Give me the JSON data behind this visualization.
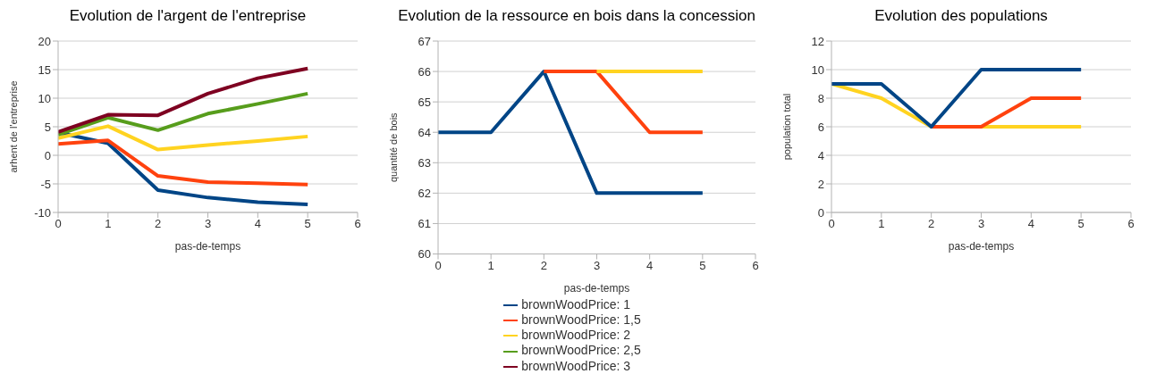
{
  "chart_data": [
    {
      "type": "line",
      "title": "Evolution de l'argent de l'entreprise",
      "xlabel": "pas-de-temps",
      "ylabel": "arhent de l'entreprise",
      "x": [
        0,
        1,
        2,
        3,
        4,
        5
      ],
      "xlim": [
        0,
        6
      ],
      "xticks": [
        0,
        1,
        2,
        3,
        4,
        5,
        6
      ],
      "ylim": [
        -10,
        20
      ],
      "yticks": [
        -10,
        -5,
        0,
        5,
        10,
        15,
        20
      ],
      "grid": "y",
      "legend": false,
      "marker": "none",
      "line_style": "solid",
      "series": [
        {
          "color": "#004586",
          "values": [
            4.0,
            2.1,
            -6.1,
            -7.4,
            -8.2,
            -8.6
          ]
        },
        {
          "color": "#ff420e",
          "values": [
            2.0,
            2.6,
            -3.6,
            -4.7,
            -4.9,
            -5.1
          ]
        },
        {
          "color": "#ffd320",
          "values": [
            3.0,
            5.1,
            1.0,
            1.8,
            2.5,
            3.3
          ]
        },
        {
          "color": "#579d1c",
          "values": [
            3.6,
            6.6,
            4.4,
            7.3,
            9.0,
            10.8
          ]
        },
        {
          "color": "#7e0021",
          "values": [
            4.1,
            7.1,
            7.0,
            10.8,
            13.5,
            15.2
          ]
        }
      ]
    },
    {
      "type": "line",
      "title": "Evolution de la ressource en bois dans la concession",
      "xlabel": "pas-de-temps",
      "ylabel": "quantité de bois",
      "x": [
        0,
        1,
        2,
        3,
        4,
        5
      ],
      "xlim": [
        0,
        6
      ],
      "xticks": [
        0,
        1,
        2,
        3,
        4,
        5,
        6
      ],
      "ylim": [
        60,
        67
      ],
      "yticks": [
        60,
        61,
        62,
        63,
        64,
        65,
        66,
        67
      ],
      "grid": "y",
      "legend": "bottom",
      "marker": "none",
      "line_style": "solid",
      "series": [
        {
          "name": "brownWoodPrice: 1",
          "color": "#004586",
          "values": [
            64,
            64,
            66,
            62,
            62,
            62
          ]
        },
        {
          "name": "brownWoodPrice: 1,5",
          "color": "#ff420e",
          "values": [
            null,
            null,
            66,
            66,
            64,
            64
          ]
        },
        {
          "name": "brownWoodPrice: 2",
          "color": "#ffd320",
          "values": [
            null,
            null,
            null,
            66,
            66,
            66
          ]
        },
        {
          "name": "brownWoodPrice: 2,5",
          "color": "#579d1c",
          "values": [
            null,
            null,
            null,
            null,
            null,
            null
          ]
        },
        {
          "name": "brownWoodPrice: 3",
          "color": "#7e0021",
          "values": [
            null,
            null,
            null,
            null,
            null,
            null
          ]
        }
      ]
    },
    {
      "type": "line",
      "title": "Evolution des populations",
      "xlabel": "pas-de-temps",
      "ylabel": "population total",
      "x": [
        0,
        1,
        2,
        3,
        4,
        5
      ],
      "xlim": [
        0,
        6
      ],
      "xticks": [
        0,
        1,
        2,
        3,
        4,
        5,
        6
      ],
      "ylim": [
        0,
        12
      ],
      "yticks": [
        0,
        2,
        4,
        6,
        8,
        10,
        12
      ],
      "grid": "y",
      "legend": false,
      "marker": "none",
      "line_style": "solid",
      "series": [
        {
          "color": "#ffd320",
          "values": [
            9,
            8,
            6,
            6,
            6,
            6
          ]
        },
        {
          "color": "#ff420e",
          "values": [
            null,
            null,
            6,
            6,
            8,
            8
          ]
        },
        {
          "color": "#004586",
          "values": [
            9,
            9,
            6,
            10,
            10,
            10
          ]
        }
      ]
    }
  ]
}
